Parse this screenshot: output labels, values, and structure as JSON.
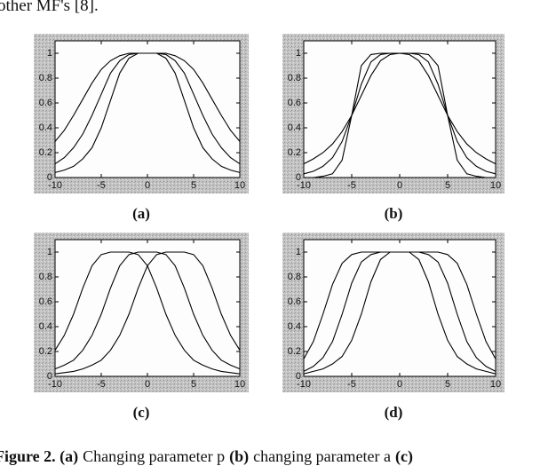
{
  "header_text": "other MF's [8].",
  "chart_data": [
    {
      "type": "line",
      "label": "(a)",
      "x": [
        -10,
        -9,
        -8,
        -7,
        -6,
        -5,
        -4,
        -3,
        -2,
        -1,
        0,
        1,
        2,
        3,
        4,
        5,
        6,
        7,
        8,
        9,
        10
      ],
      "series": [
        {
          "color": "#000000",
          "values": [
            0.29,
            0.38,
            0.5,
            0.63,
            0.76,
            0.87,
            0.94,
            0.98,
            1.0,
            1.0,
            1,
            1.0,
            1.0,
            0.98,
            0.94,
            0.87,
            0.76,
            0.63,
            0.5,
            0.38,
            0.29
          ]
        },
        {
          "color": "#000000",
          "values": [
            0.11,
            0.16,
            0.24,
            0.35,
            0.5,
            0.67,
            0.84,
            0.94,
            0.99,
            1.0,
            1,
            1.0,
            0.99,
            0.94,
            0.84,
            0.67,
            0.5,
            0.35,
            0.24,
            0.16,
            0.11
          ]
        },
        {
          "color": "#000000",
          "values": [
            0.04,
            0.06,
            0.09,
            0.15,
            0.24,
            0.4,
            0.62,
            0.84,
            0.96,
            1.0,
            1,
            1.0,
            0.96,
            0.84,
            0.62,
            0.4,
            0.24,
            0.15,
            0.09,
            0.06,
            0.04
          ]
        }
      ],
      "xlim": [
        -10,
        10
      ],
      "ylim": [
        0,
        1.1
      ],
      "xticks": [
        -10,
        -5,
        0,
        5,
        10
      ],
      "yticks": [
        0,
        0.2,
        0.4,
        0.6,
        0.8,
        1
      ]
    },
    {
      "type": "line",
      "label": "(b)",
      "x": [
        -10,
        -9,
        -8,
        -7,
        -6,
        -5,
        -4,
        -3,
        -2,
        -1,
        0,
        1,
        2,
        3,
        4,
        5,
        6,
        7,
        8,
        9,
        10
      ],
      "series": [
        {
          "color": "#000000",
          "values": [
            0.11,
            0.15,
            0.2,
            0.27,
            0.37,
            0.5,
            0.66,
            0.82,
            0.94,
            0.99,
            1,
            0.99,
            0.94,
            0.82,
            0.66,
            0.5,
            0.37,
            0.27,
            0.2,
            0.15,
            0.11
          ]
        },
        {
          "color": "#000000",
          "values": [
            0.03,
            0.05,
            0.09,
            0.16,
            0.29,
            0.5,
            0.75,
            0.93,
            0.99,
            1.0,
            1,
            1.0,
            0.99,
            0.93,
            0.75,
            0.5,
            0.29,
            0.16,
            0.09,
            0.05,
            0.03
          ]
        },
        {
          "color": "#000000",
          "values": [
            0.0,
            0.0,
            0.01,
            0.03,
            0.14,
            0.5,
            0.9,
            0.99,
            1.0,
            1.0,
            1,
            1.0,
            1.0,
            0.99,
            0.9,
            0.5,
            0.14,
            0.03,
            0.01,
            0.0,
            0.0
          ]
        }
      ],
      "xlim": [
        -10,
        10
      ],
      "ylim": [
        0,
        1.1
      ],
      "xticks": [
        -10,
        -5,
        0,
        5,
        10
      ],
      "yticks": [
        0,
        0.2,
        0.4,
        0.6,
        0.8,
        1
      ]
    },
    {
      "type": "line",
      "label": "(c)",
      "x": [
        -10,
        -9,
        -8,
        -7,
        -6,
        -5,
        -4,
        -3,
        -2,
        -1,
        0,
        1,
        2,
        3,
        4,
        5,
        6,
        7,
        8,
        9,
        10
      ],
      "series": [
        {
          "color": "#000000",
          "values": [
            0.21,
            0.33,
            0.5,
            0.71,
            0.89,
            0.98,
            1.0,
            1,
            1.0,
            0.98,
            0.89,
            0.71,
            0.5,
            0.33,
            0.21,
            0.13,
            0.09,
            0.06,
            0.04,
            0.03,
            0.02
          ]
        },
        {
          "color": "#000000",
          "values": [
            0.06,
            0.09,
            0.13,
            0.21,
            0.33,
            0.5,
            0.71,
            0.89,
            0.98,
            1.0,
            1,
            1.0,
            0.98,
            0.89,
            0.71,
            0.5,
            0.33,
            0.21,
            0.13,
            0.09,
            0.06
          ]
        },
        {
          "color": "#000000",
          "values": [
            0.02,
            0.03,
            0.04,
            0.06,
            0.09,
            0.13,
            0.21,
            0.33,
            0.5,
            0.71,
            0.89,
            0.98,
            1.0,
            1,
            1.0,
            0.98,
            0.89,
            0.71,
            0.5,
            0.33,
            0.21
          ]
        }
      ],
      "xlim": [
        -10,
        10
      ],
      "ylim": [
        0,
        1.1
      ],
      "xticks": [
        -10,
        -5,
        0,
        5,
        10
      ],
      "yticks": [
        0,
        0.2,
        0.4,
        0.6,
        0.8,
        1
      ]
    },
    {
      "type": "line",
      "label": "(d)",
      "x": [
        -10,
        -9,
        -8,
        -7,
        -6,
        -5,
        -4,
        -3,
        -2,
        -1,
        0,
        1,
        2,
        3,
        4,
        5,
        6,
        7,
        8,
        9,
        10
      ],
      "series": [
        {
          "color": "#000000",
          "values": [
            0.14,
            0.28,
            0.5,
            0.74,
            0.91,
            0.98,
            1.0,
            1.0,
            1.0,
            1.0,
            1,
            1.0,
            1.0,
            1.0,
            1.0,
            0.98,
            0.91,
            0.74,
            0.5,
            0.28,
            0.14
          ]
        },
        {
          "color": "#000000",
          "values": [
            0.04,
            0.08,
            0.15,
            0.28,
            0.5,
            0.75,
            0.92,
            0.98,
            1.0,
            1.0,
            1,
            1.0,
            1.0,
            0.98,
            0.92,
            0.75,
            0.5,
            0.28,
            0.15,
            0.08,
            0.04
          ]
        },
        {
          "color": "#000000",
          "values": [
            0.02,
            0.04,
            0.06,
            0.1,
            0.16,
            0.29,
            0.5,
            0.76,
            0.94,
            1.0,
            1,
            1.0,
            0.94,
            0.76,
            0.5,
            0.29,
            0.16,
            0.1,
            0.06,
            0.04,
            0.02
          ]
        }
      ],
      "xlim": [
        -10,
        10
      ],
      "ylim": [
        0,
        1.1
      ],
      "xticks": [
        -10,
        -5,
        0,
        5,
        10
      ],
      "yticks": [
        0,
        0.2,
        0.4,
        0.6,
        0.8,
        1
      ]
    }
  ],
  "caption": [
    {
      "text": "Figure 2. (a)",
      "bold": true
    },
    {
      "text": "Changing parameter p",
      "bold": false
    },
    {
      "text": "(b)",
      "bold": true
    },
    {
      "text": "changing parameter a",
      "bold": false
    },
    {
      "text": "(c)",
      "bold": true
    }
  ]
}
